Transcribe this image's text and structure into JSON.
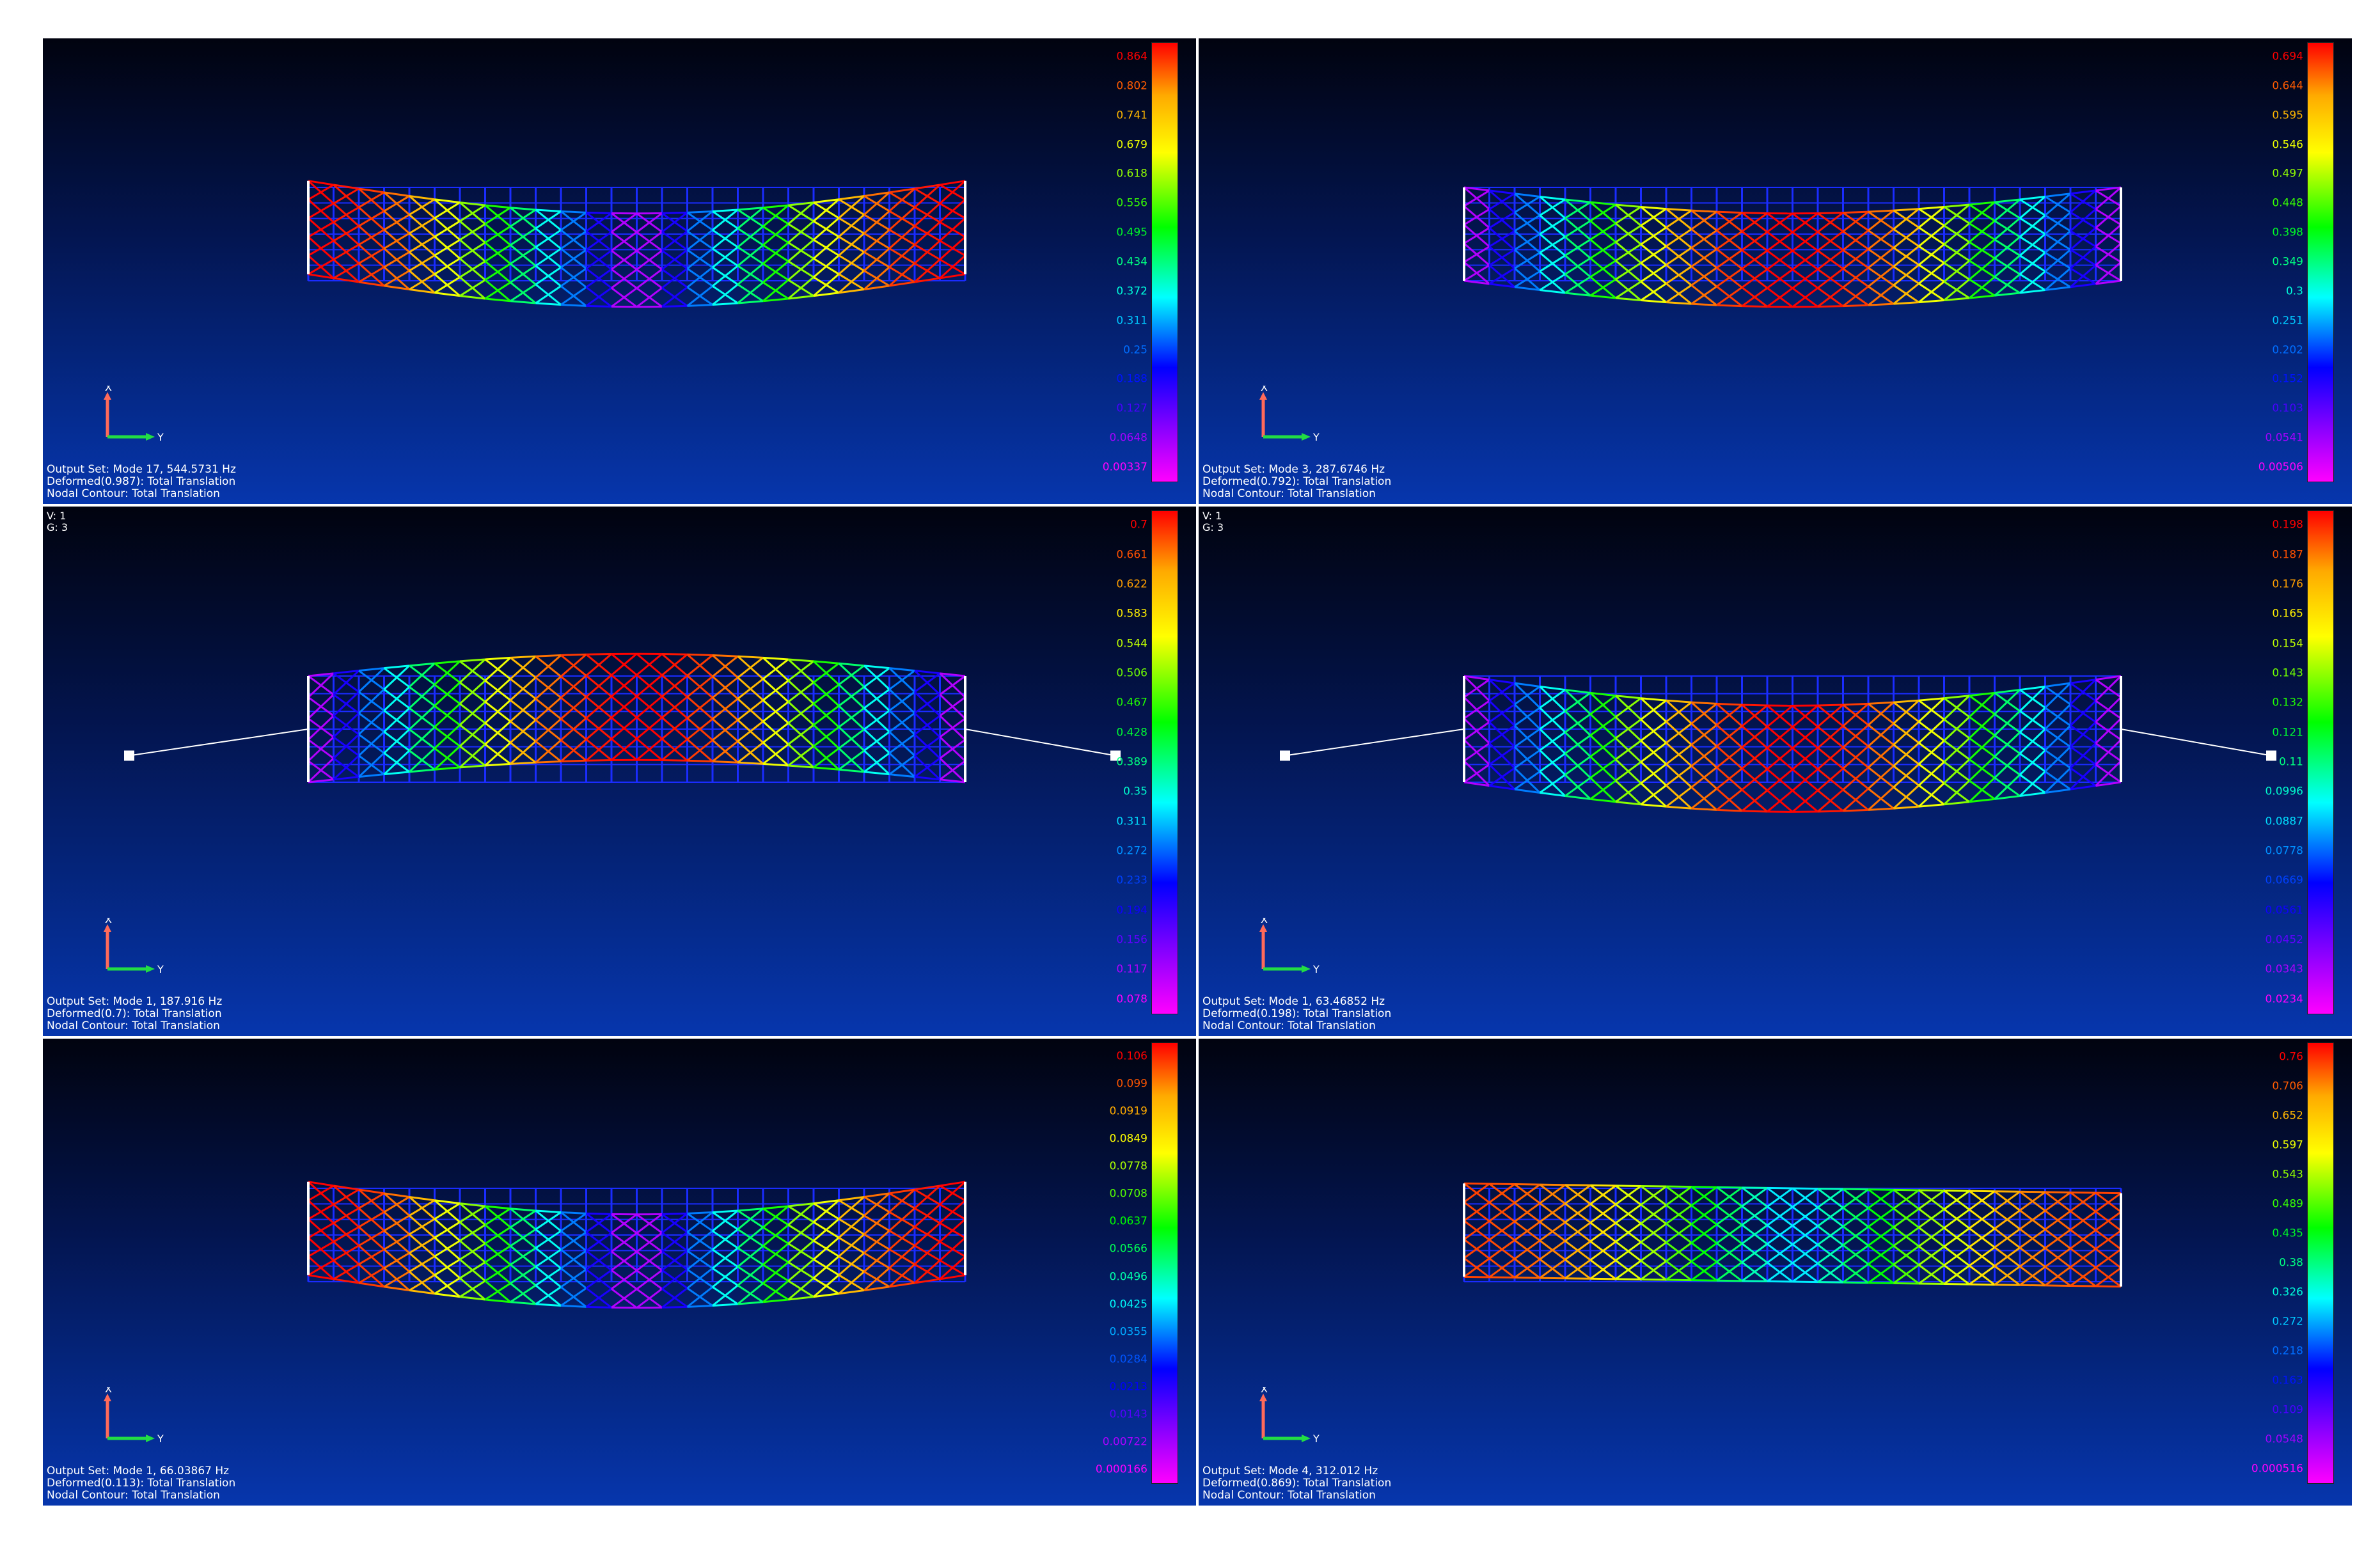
{
  "panels": [
    {
      "id": "p1",
      "output_set": "Output Set: Mode 17, 544.5731 Hz",
      "deformed": "Deformed(0.987): Total Translation",
      "contour": "Nodal Contour: Total Translation",
      "vg": [
        "",
        ""
      ],
      "legend_values": [
        "0.864",
        "0.802",
        "0.741",
        "0.679",
        "0.618",
        "0.556",
        "0.495",
        "0.434",
        "0.372",
        "0.311",
        "0.25",
        "0.188",
        "0.127",
        "0.0648",
        "0.00337"
      ],
      "shape": "ends-up",
      "springs": false
    },
    {
      "id": "p2",
      "output_set": "Output Set: Mode 3, 287.6746 Hz",
      "deformed": "Deformed(0.792): Total Translation",
      "contour": "Nodal Contour: Total Translation",
      "vg": [
        "",
        ""
      ],
      "legend_values": [
        "0.694",
        "0.644",
        "0.595",
        "0.546",
        "0.497",
        "0.448",
        "0.398",
        "0.349",
        "0.3",
        "0.251",
        "0.202",
        "0.152",
        "0.103",
        "0.0541",
        "0.00506"
      ],
      "shape": "sag",
      "springs": false
    },
    {
      "id": "p3",
      "output_set": "Output Set: Mode 1, 187.916 Hz",
      "deformed": "Deformed(0.7): Total Translation",
      "contour": "Nodal Contour: Total Translation",
      "vg": [
        "V: 1",
        "G: 3"
      ],
      "legend_values": [
        "0.7",
        "0.661",
        "0.622",
        "0.583",
        "0.544",
        "0.506",
        "0.467",
        "0.428",
        "0.389",
        "0.35",
        "0.311",
        "0.272",
        "0.233",
        "0.194",
        "0.156",
        "0.117",
        "0.078"
      ],
      "shape": "arch",
      "springs": true
    },
    {
      "id": "p4",
      "output_set": "Output Set: Mode 1, 63.46852 Hz",
      "deformed": "Deformed(0.198): Total Translation",
      "contour": "Nodal Contour: Total Translation",
      "vg": [
        "V: 1",
        "G: 3"
      ],
      "legend_values": [
        "0.198",
        "0.187",
        "0.176",
        "0.165",
        "0.154",
        "0.143",
        "0.132",
        "0.121",
        "0.11",
        "0.0996",
        "0.0887",
        "0.0778",
        "0.0669",
        "0.0561",
        "0.0452",
        "0.0343",
        "0.0234"
      ],
      "shape": "sag",
      "springs": true
    },
    {
      "id": "p5",
      "output_set": "Output Set: Mode 1, 66.03867 Hz",
      "deformed": "Deformed(0.113): Total Translation",
      "contour": "Nodal Contour: Total Translation",
      "vg": [
        "",
        ""
      ],
      "legend_values": [
        "0.106",
        "0.099",
        "0.0919",
        "0.0849",
        "0.0778",
        "0.0708",
        "0.0637",
        "0.0566",
        "0.0496",
        "0.0425",
        "0.0355",
        "0.0284",
        "0.0213",
        "0.0143",
        "0.00722",
        "0.000166"
      ],
      "shape": "ends-up",
      "springs": false
    },
    {
      "id": "p6",
      "output_set": "Output Set: Mode 4, 312.012 Hz",
      "deformed": "Deformed(0.869): Total Translation",
      "contour": "Nodal Contour: Total Translation",
      "vg": [
        "",
        ""
      ],
      "legend_values": [
        "0.76",
        "0.706",
        "0.652",
        "0.597",
        "0.543",
        "0.489",
        "0.435",
        "0.38",
        "0.326",
        "0.272",
        "0.218",
        "0.163",
        "0.109",
        "0.0548",
        "0.000516"
      ],
      "shape": "twist",
      "springs": false
    }
  ],
  "axis_labels": {
    "x": "X",
    "y": "Y"
  }
}
